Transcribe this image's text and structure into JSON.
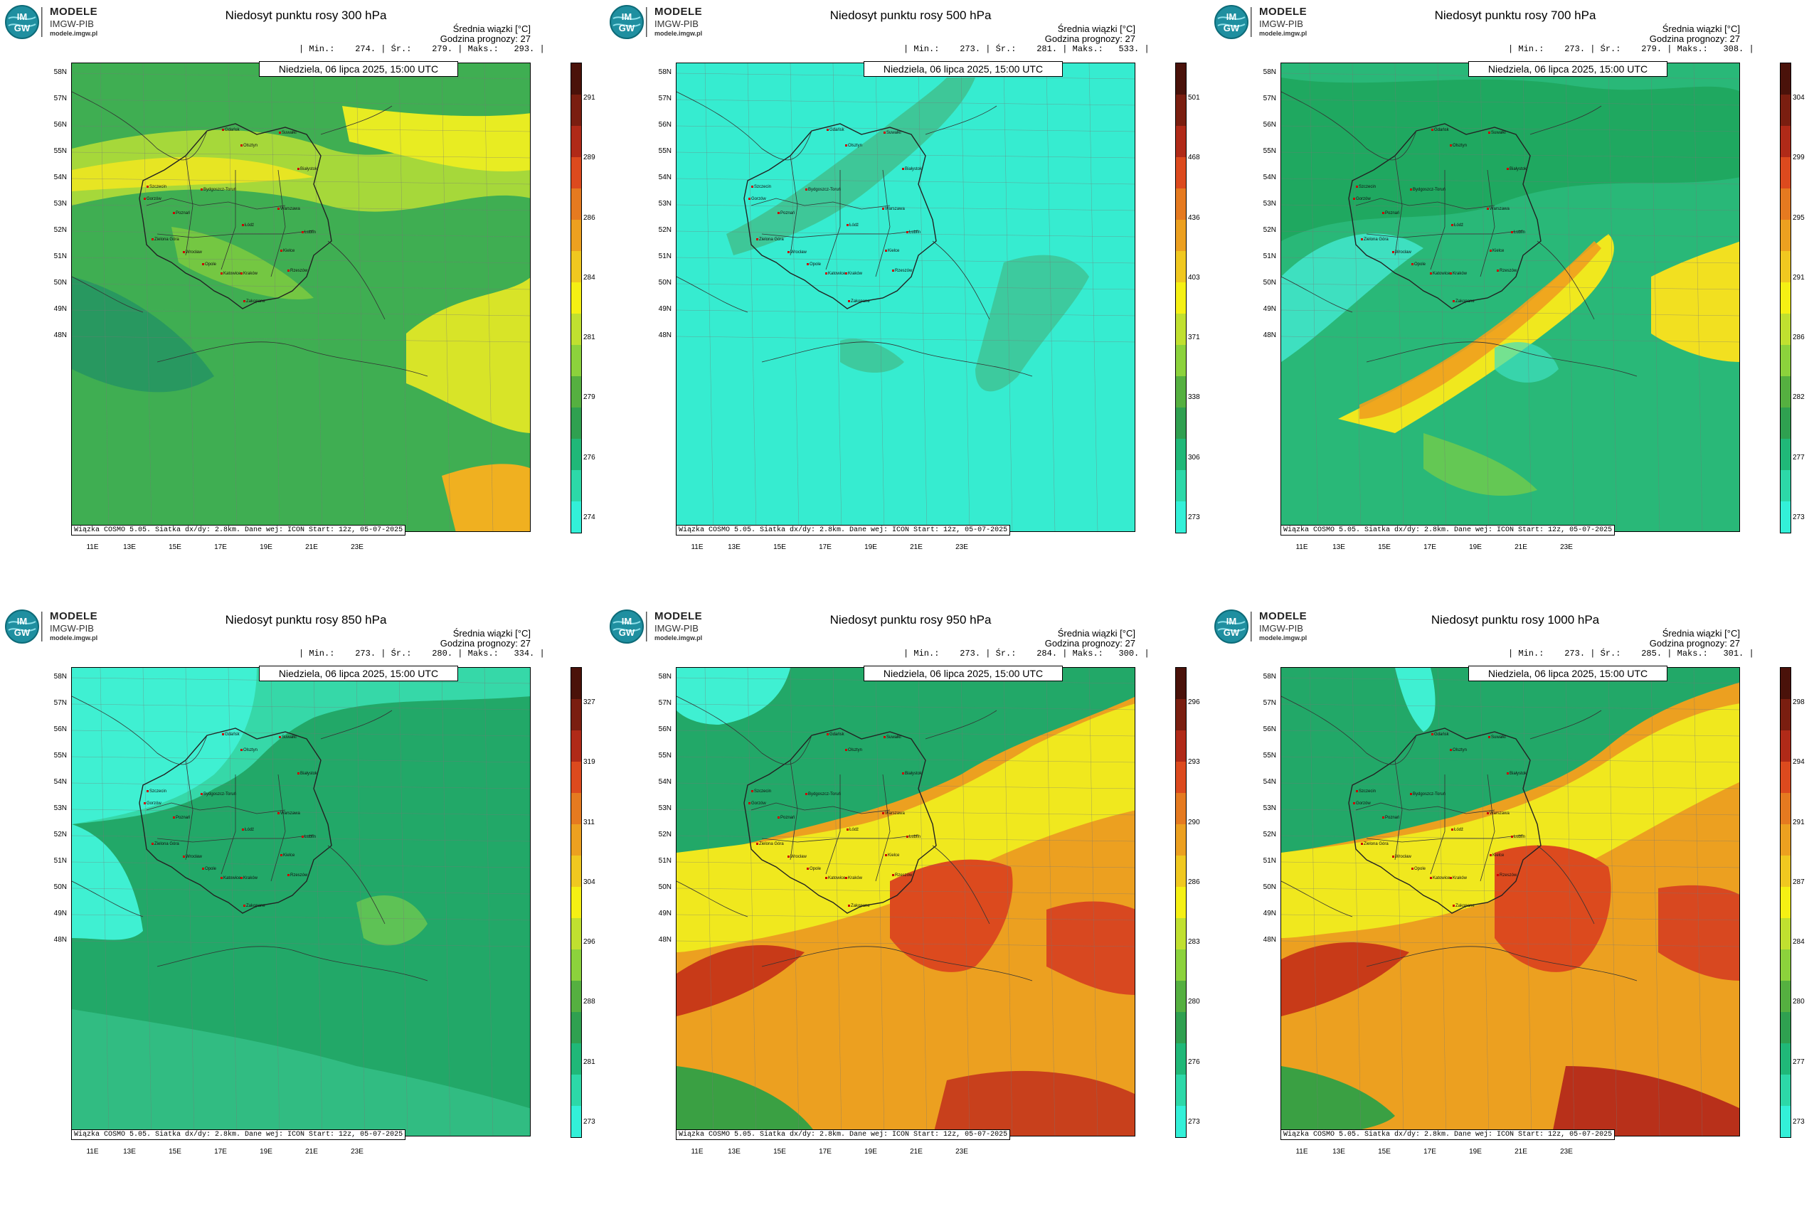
{
  "logo": {
    "brand": "MODELE",
    "org": "IMGW-PIB",
    "url": "modele.imgw.pl",
    "mark": "IM GW"
  },
  "common": {
    "stat_title": "Średnia wiązki [°C]",
    "forecast_hour": "Godzina prognozy: 27",
    "date": "Niedziela, 06 lipca 2025, 15:00 UTC",
    "footer": "Wiązka COSMO 5.05. Siatka dx/dy: 2.8km. Dane wej: ICON Start: 12z, 05-07-2025",
    "lat_labels": [
      "58N",
      "57N",
      "56N",
      "55N",
      "54N",
      "53N",
      "52N",
      "51N",
      "50N",
      "49N",
      "48N"
    ],
    "lon_labels": [
      "11E",
      "13E",
      "15E",
      "17E",
      "19E",
      "21E",
      "23E"
    ],
    "cities": [
      "Gdańsk",
      "Olsztyn",
      "Suwałki",
      "Białystok",
      "Szczecin",
      "Bydgoszcz-Toruń",
      "Gorzów",
      "Poznań",
      "Warszawa",
      "Łódź",
      "Zielona Góra",
      "Lublin",
      "Wrocław",
      "Kielce",
      "Opole",
      "Katowice",
      "Kraków",
      "Rzeszów",
      "Zakopane"
    ]
  },
  "panels": [
    {
      "title": "Niedosyt punktu rosy 300 hPa",
      "stats": "| Min.:    274. | Śr.:    279. | Maks.:   293. |",
      "ticks": [
        "291",
        "289",
        "286",
        "284",
        "281",
        "279",
        "276",
        "274"
      ],
      "scheme": "p300"
    },
    {
      "title": "Niedosyt punktu rosy 500 hPa",
      "stats": "| Min.:    273. | Śr.:    281. | Maks.:   533. |",
      "ticks": [
        "501",
        "468",
        "436",
        "403",
        "371",
        "338",
        "306",
        "273"
      ],
      "scheme": "p500"
    },
    {
      "title": "Niedosyt punktu rosy 700 hPa",
      "stats": "| Min.:    273. | Śr.:    279. | Maks.:   308. |",
      "ticks": [
        "304",
        "299",
        "295",
        "291",
        "286",
        "282",
        "277",
        "273"
      ],
      "scheme": "p700"
    },
    {
      "title": "Niedosyt punktu rosy 850 hPa",
      "stats": "| Min.:    273. | Śr.:    280. | Maks.:   334. |",
      "ticks": [
        "327",
        "319",
        "311",
        "304",
        "296",
        "288",
        "281",
        "273"
      ],
      "scheme": "p850"
    },
    {
      "title": "Niedosyt punktu rosy 950 hPa",
      "stats": "| Min.:    273. | Śr.:    284. | Maks.:   300. |",
      "ticks": [
        "296",
        "293",
        "290",
        "286",
        "283",
        "280",
        "276",
        "273"
      ],
      "scheme": "p950"
    },
    {
      "title": "Niedosyt punktu rosy 1000 hPa",
      "stats": "| Min.:    273. | Śr.:    285. | Maks.:   301. |",
      "ticks": [
        "298",
        "294",
        "291",
        "287",
        "284",
        "280",
        "277",
        "273"
      ],
      "scheme": "p1000"
    }
  ],
  "colors": {
    "cyan": "#33f0d8",
    "teal": "#1fb880",
    "green": "#3aa043",
    "lime": "#8cd23c",
    "yellow": "#f5f014",
    "orange": "#f0a01e",
    "red": "#dc4a1e",
    "brown": "#5a1a0e"
  }
}
